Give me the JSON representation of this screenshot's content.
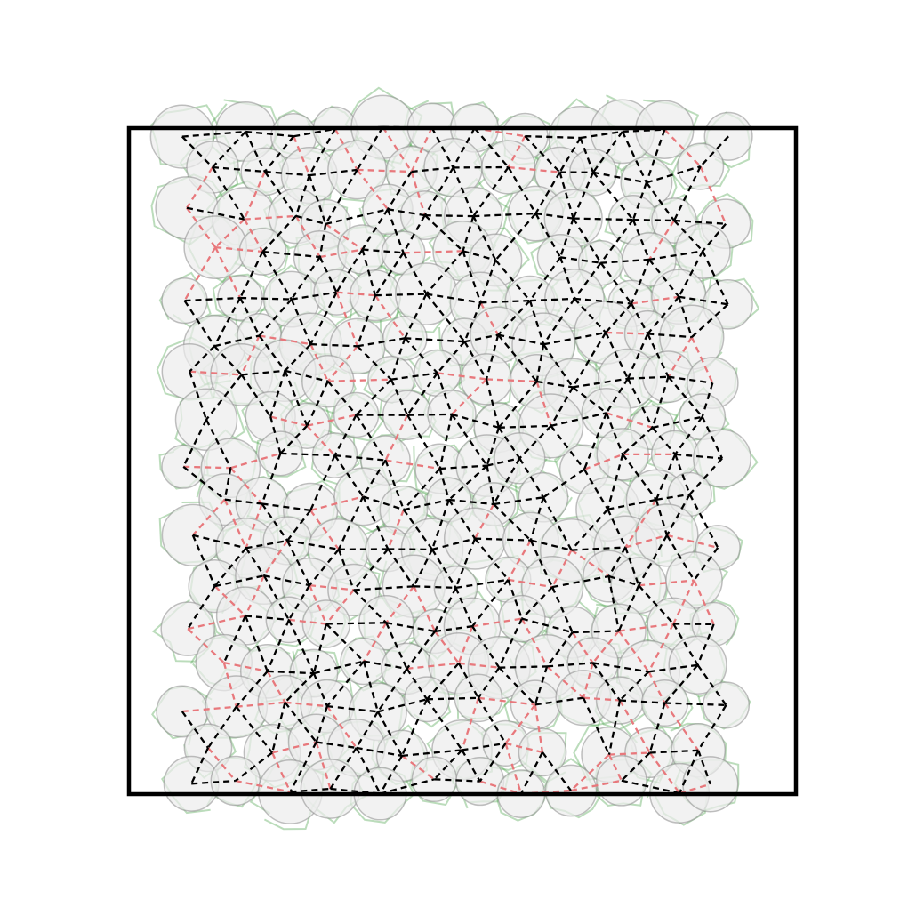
{
  "diagram": {
    "kind": "granular packing contact network",
    "has_text": false,
    "colors": {
      "background": "#ffffff",
      "frame": "#000000",
      "particle_fill": "#ececec",
      "particle_edge": "#8c8c8c",
      "strong_contact": "#000000",
      "weak_contact": "#e8787c",
      "trajectory": "#3b9a3b"
    },
    "legend": []
  }
}
